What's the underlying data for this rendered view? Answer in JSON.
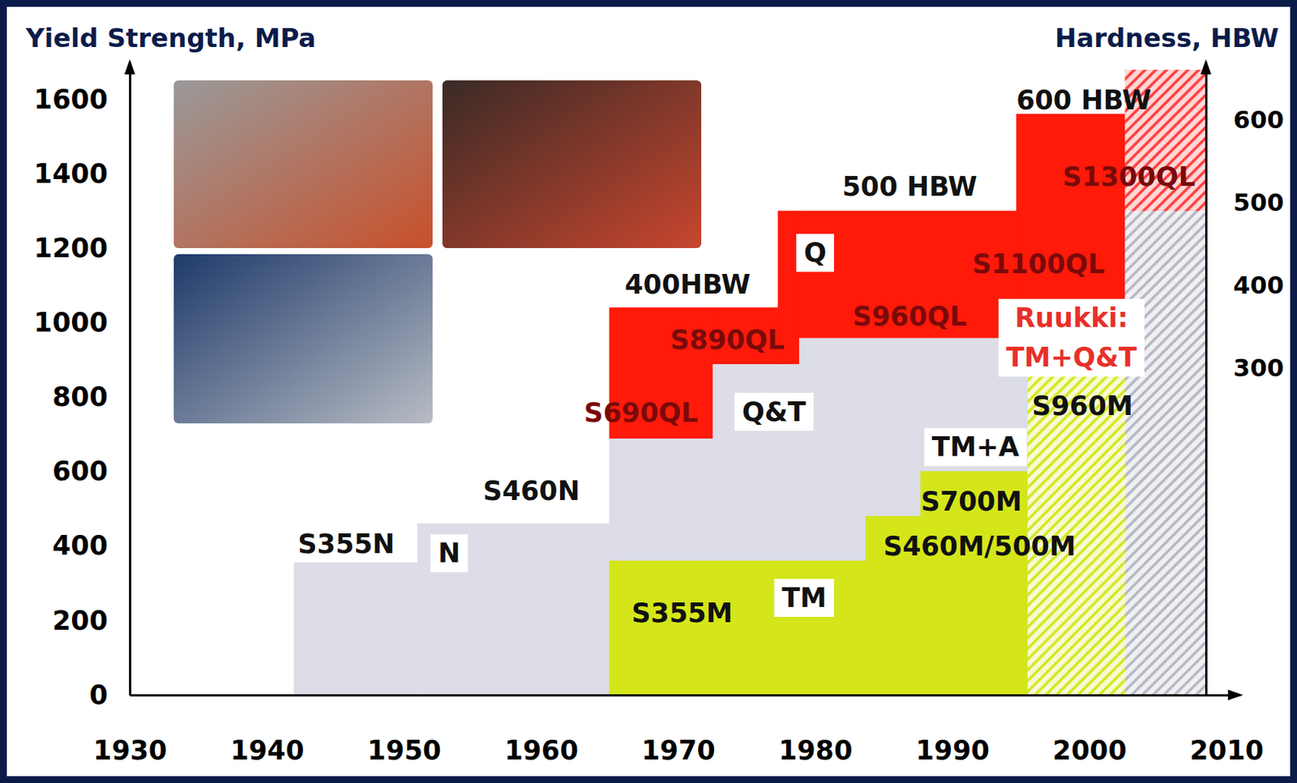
{
  "chart_data": {
    "type": "step_area",
    "y_label": "Yield Strength, MPa",
    "y2_label": "Hardness, HBW",
    "xlim": [
      1930,
      2011
    ],
    "xticks": [
      1930,
      1940,
      1950,
      1960,
      1970,
      1980,
      1990,
      2000,
      2010
    ],
    "ylim": [
      0,
      1700
    ],
    "yticks": [
      0,
      200,
      400,
      600,
      800,
      1000,
      1200,
      1400,
      1600
    ],
    "y2lim": [
      -95,
      670
    ],
    "y2ticks": [
      300,
      400,
      500,
      600
    ],
    "grid": false,
    "series": [
      {
        "type": "area",
        "color": "#dcdde7",
        "x": [
          1942,
          1951,
          1965,
          1972.5,
          1978.8,
          1995.5
        ],
        "upper": [
          355,
          460,
          690,
          890,
          960
        ],
        "lower": [
          0,
          0,
          0,
          0,
          0
        ]
      },
      {
        "type": "area",
        "color": "#ff1a0a",
        "x": [
          1965,
          1972.5,
          1977.3,
          1978.8,
          1994.7,
          2002.6
        ],
        "upper": [
          1040,
          1040,
          1300,
          1300,
          1560
        ],
        "lower": [
          690,
          890,
          890,
          960,
          960
        ]
      },
      {
        "type": "area",
        "color": "#d4e61a",
        "x": [
          1965,
          1983.7,
          1987.7,
          1995.5
        ],
        "upper": [
          360,
          480,
          600
        ],
        "lower": [
          0,
          0,
          0
        ]
      },
      {
        "type": "hatched_area",
        "color": "#d4e61a",
        "x": [
          1995.5,
          2002.6
        ],
        "upper": [
          960
        ],
        "lower": [
          0
        ]
      },
      {
        "type": "hatched_area",
        "color": "#b4b6c2",
        "x": [
          2002.6,
          2008.5
        ],
        "upper": [
          1300
        ],
        "lower": [
          0
        ]
      },
      {
        "type": "hatched_area",
        "color": "#ff3a3a",
        "x": [
          2002.6,
          2008.5
        ],
        "upper": [
          1680
        ],
        "lower": [
          1300
        ]
      }
    ],
    "annotations": [
      {
        "text": "400HBW",
        "x": 1970.7,
        "y": 1104,
        "color": "#111111"
      },
      {
        "text": "500 HBW",
        "x": 1986.9,
        "y": 1367,
        "color": "#111111"
      },
      {
        "text": "600 HBW",
        "x": 1999.6,
        "y": 1600,
        "color": "#111111"
      },
      {
        "text": "S1300QL",
        "x": 2002.9,
        "y": 1393,
        "color": "#7a0a0a"
      },
      {
        "text": "S1100QL",
        "x": 1996.3,
        "y": 1160,
        "color": "#7a0a0a"
      },
      {
        "text": "S960QL",
        "x": 1986.9,
        "y": 1018,
        "color": "#7a0a0a"
      },
      {
        "text": "S890QL",
        "x": 1973.6,
        "y": 956,
        "color": "#7a0a0a"
      },
      {
        "text": "S690QL",
        "x": 1967.3,
        "y": 760,
        "color": "#7a0a0a"
      },
      {
        "text": "Q&T",
        "x": 1977,
        "y": 762,
        "color": "#111111",
        "marker": "box"
      },
      {
        "text": "Q",
        "x": 1980,
        "y": 1189,
        "color": "#111111",
        "marker": "box"
      },
      {
        "text": [
          "Ruukki:",
          "TM+Q&T"
        ],
        "x": 1998.7,
        "y": 961,
        "color": "#e8302a",
        "marker": "box"
      },
      {
        "text": "S960M",
        "x": 1999.5,
        "y": 778,
        "color": "#111111"
      },
      {
        "text": "TM+A",
        "x": 1991.7,
        "y": 667,
        "color": "#111111",
        "marker": "box"
      },
      {
        "text": "S700M",
        "x": 1991.4,
        "y": 522,
        "color": "#111111"
      },
      {
        "text": "S460M/500M",
        "x": 1992,
        "y": 400,
        "color": "#111111"
      },
      {
        "text": "S355M",
        "x": 1970.3,
        "y": 222,
        "color": "#111111"
      },
      {
        "text": "TM",
        "x": 1979.2,
        "y": 262,
        "color": "#111111",
        "marker": "box"
      },
      {
        "text": "S460N",
        "x": 1959.3,
        "y": 549,
        "color": "#111111"
      },
      {
        "text": "S355N",
        "x": 1945.8,
        "y": 407,
        "color": "#111111"
      },
      {
        "text": "N",
        "x": 1953.3,
        "y": 382,
        "color": "#111111",
        "marker": "box"
      }
    ]
  }
}
